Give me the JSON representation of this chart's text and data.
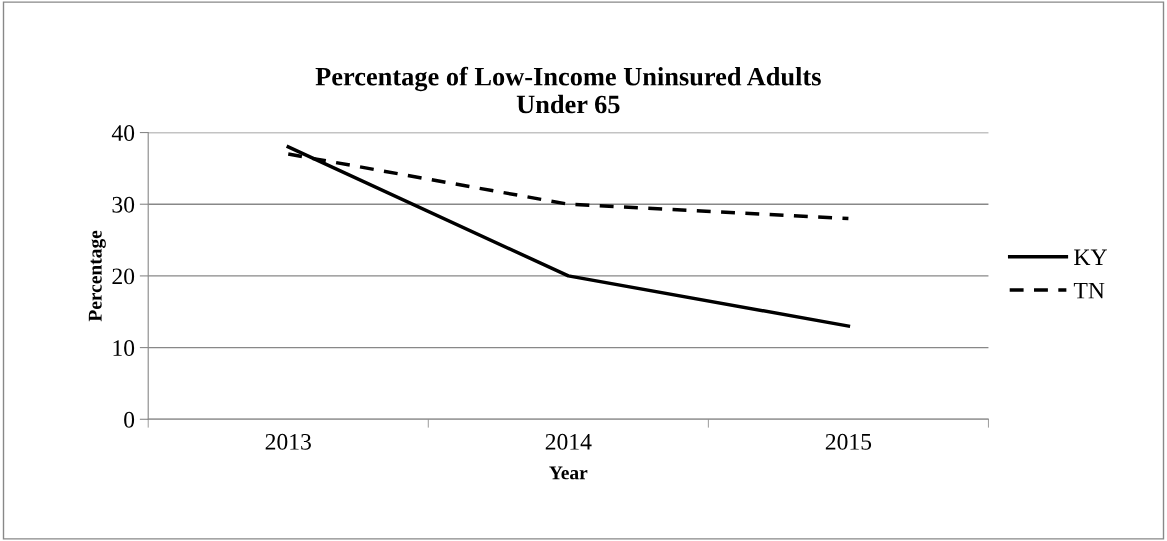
{
  "chart_data": {
    "type": "line",
    "title": "Percentage of Low-Income Uninsured Adults\nUnder 65",
    "xlabel": "Year",
    "ylabel": "Percentage",
    "categories": [
      "2013",
      "2014",
      "2015"
    ],
    "series": [
      {
        "name": "KY",
        "color": "#000000",
        "values": [
          38,
          20,
          13
        ],
        "line_style": "solid"
      },
      {
        "name": "TN",
        "color": "#000000",
        "values": [
          37,
          30,
          28
        ],
        "line_style": "dashed"
      }
    ],
    "ylim": [
      0,
      40
    ],
    "yticks": [
      0,
      10,
      20,
      30,
      40
    ],
    "grid": "y",
    "legend": "right"
  }
}
